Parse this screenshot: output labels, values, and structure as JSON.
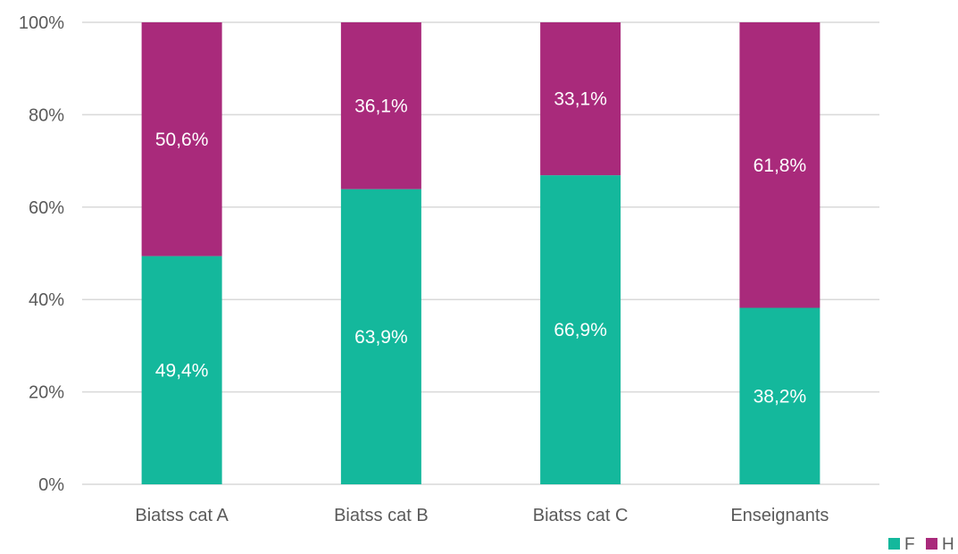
{
  "chart_data": {
    "type": "bar",
    "stacked": true,
    "percent_stacked": true,
    "categories": [
      "Biatss cat A",
      "Biatss cat B",
      "Biatss cat C",
      "Enseignants"
    ],
    "series": [
      {
        "name": "F",
        "color": "#14b89c",
        "values": [
          49.4,
          63.9,
          66.9,
          38.2
        ],
        "labels": [
          "49,4%",
          "63,9%",
          "66,9%",
          "38,2%"
        ]
      },
      {
        "name": "H",
        "color": "#a92a7b",
        "values": [
          50.6,
          36.1,
          33.1,
          61.8
        ],
        "labels": [
          "50,6%",
          "36,1%",
          "33,1%",
          "61,8%"
        ]
      }
    ],
    "yticks": [
      0,
      20,
      40,
      60,
      80,
      100
    ],
    "ytick_labels": [
      "0%",
      "20%",
      "40%",
      "60%",
      "80%",
      "100%"
    ],
    "ylim": [
      0,
      100
    ],
    "title": "",
    "xlabel": "",
    "ylabel": "",
    "grid": true,
    "legend_position": "bottom-right"
  }
}
